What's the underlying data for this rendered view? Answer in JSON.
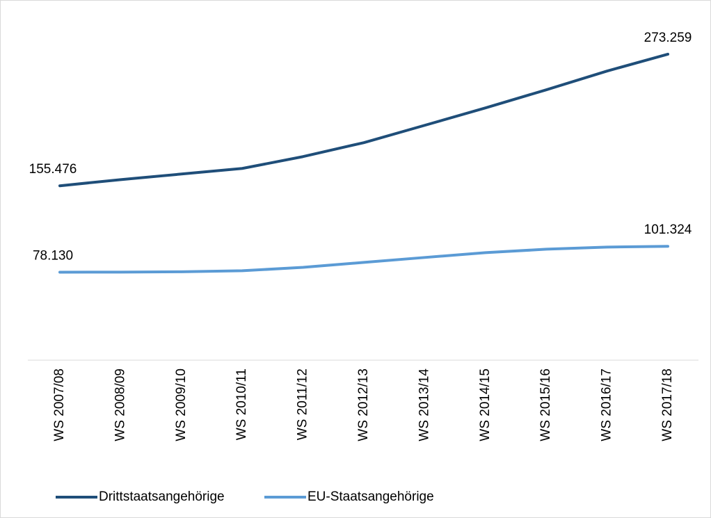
{
  "chart_data": {
    "type": "line",
    "categories": [
      "WS 2007/08",
      "WS 2008/09",
      "WS 2009/10",
      "WS 2010/11",
      "WS 2011/12",
      "WS 2012/13",
      "WS 2013/14",
      "WS 2014/15",
      "WS 2015/16",
      "WS 2016/17",
      "WS 2017/18"
    ],
    "series": [
      {
        "name": "Drittstaatsangehörige",
        "color": "#1f4e79",
        "values": [
          155476,
          161000,
          166000,
          171000,
          181600,
          194100,
          209600,
          225200,
          241400,
          258200,
          273259
        ],
        "value_labels": [
          "155.476",
          null,
          null,
          null,
          null,
          null,
          null,
          null,
          null,
          null,
          "273.259"
        ]
      },
      {
        "name": "EU-Staatsangehörige",
        "color": "#5b9bd5",
        "values": [
          78130,
          78200,
          78500,
          79400,
          82500,
          86900,
          91300,
          95600,
          98700,
          100600,
          101324
        ],
        "value_labels": [
          "78.130",
          null,
          null,
          null,
          null,
          null,
          null,
          null,
          null,
          null,
          "101.324"
        ]
      }
    ],
    "ylim": [
      0,
      300000
    ],
    "grid": false,
    "legend": "bottom"
  }
}
